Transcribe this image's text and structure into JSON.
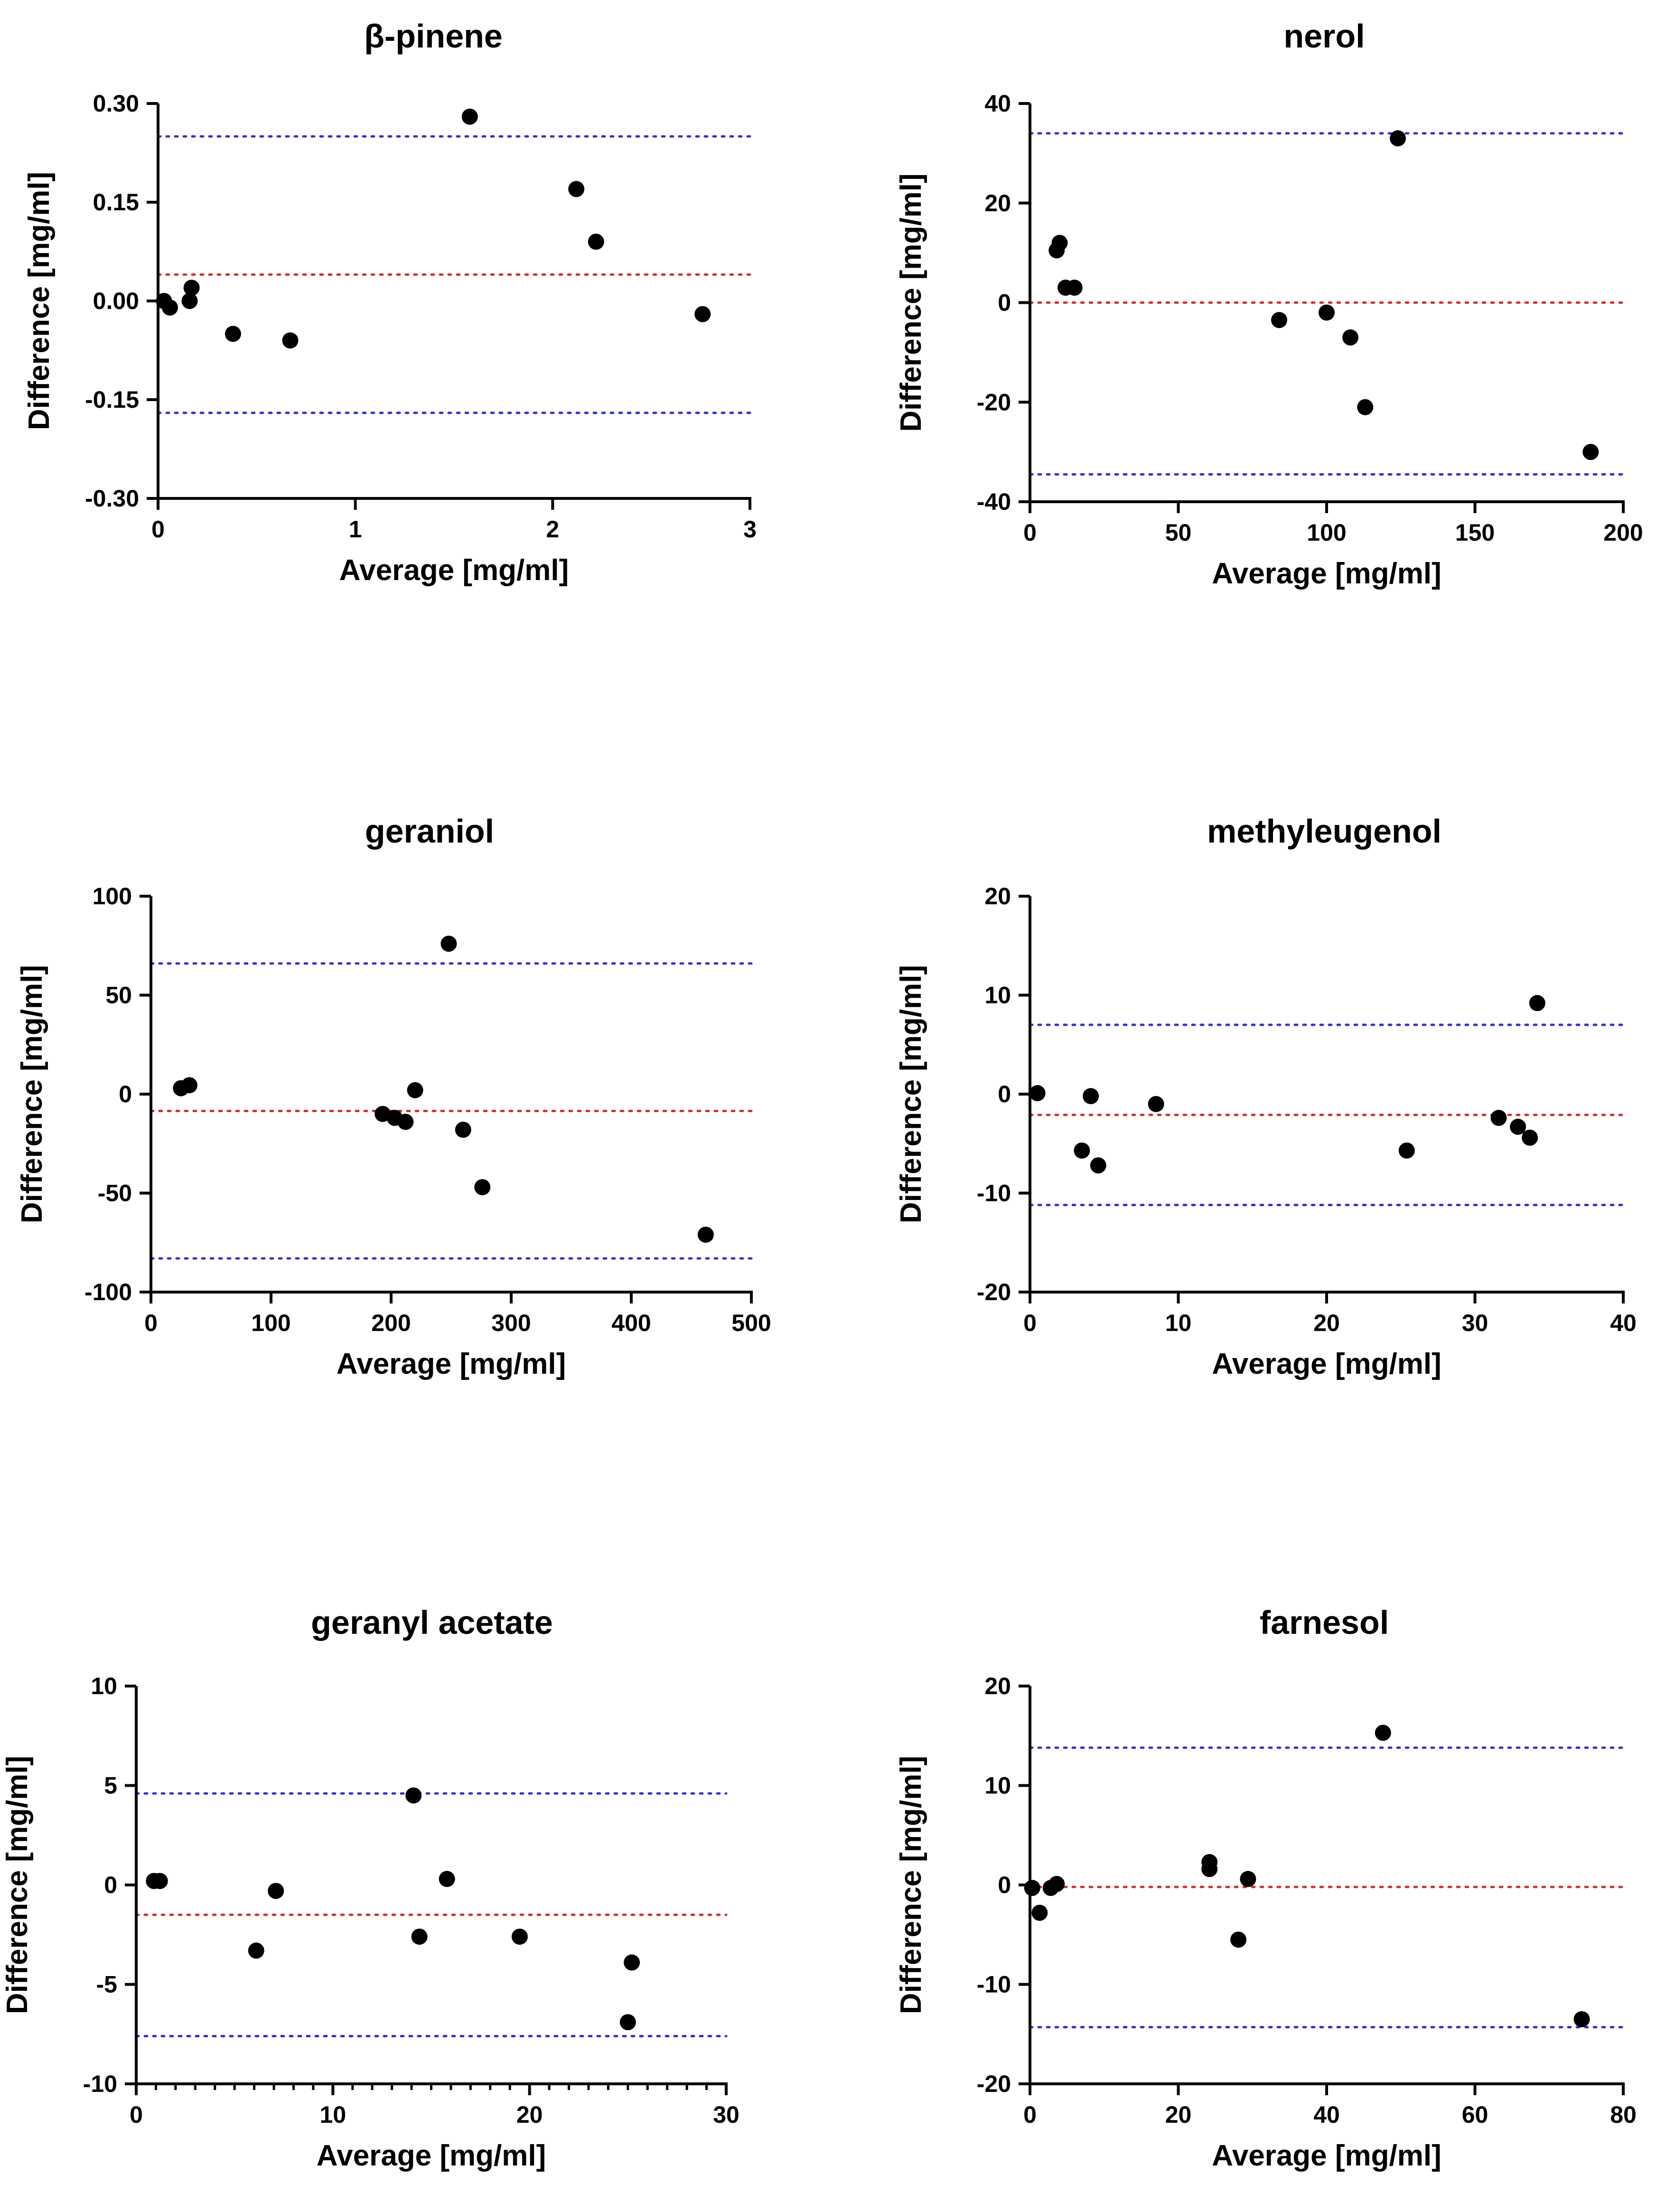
{
  "chart_data": [
    {
      "type": "scatter",
      "title": "β-pinene",
      "xlabel": "Average [mg/ml]",
      "ylabel": "Difference [mg/ml]",
      "xlim": [
        0,
        3
      ],
      "ylim": [
        -0.3,
        0.3
      ],
      "xticks": [
        0,
        1,
        2,
        3
      ],
      "xtick_labels": [
        "0",
        "1",
        "2",
        "3"
      ],
      "yticks": [
        -0.3,
        -0.15,
        0.0,
        0.15,
        0.3
      ],
      "ytick_labels": [
        "-0.30",
        "-0.15",
        "0.00",
        "0.15",
        "0.30"
      ],
      "x_minor_ticks": false,
      "points": [
        [
          0.03,
          0.0
        ],
        [
          0.06,
          -0.01
        ],
        [
          0.16,
          0.0
        ],
        [
          0.17,
          0.02
        ],
        [
          0.38,
          -0.05
        ],
        [
          0.67,
          -0.06
        ],
        [
          1.58,
          0.28
        ],
        [
          2.12,
          0.17
        ],
        [
          2.22,
          0.09
        ],
        [
          2.76,
          -0.02
        ]
      ],
      "reference_lines": [
        {
          "name": "upper limit of agreement",
          "y": 0.25,
          "color": "#3333cc"
        },
        {
          "name": "mean difference",
          "y": 0.04,
          "color": "#cc3333"
        },
        {
          "name": "lower limit of agreement",
          "y": -0.17,
          "color": "#3333cc"
        }
      ]
    },
    {
      "type": "scatter",
      "title": "nerol",
      "xlabel": "Average [mg/ml]",
      "ylabel": "Difference [mg/ml]",
      "xlim": [
        0,
        200
      ],
      "ylim": [
        -40,
        40
      ],
      "xticks": [
        0,
        50,
        100,
        150,
        200
      ],
      "xtick_labels": [
        "0",
        "50",
        "100",
        "150",
        "200"
      ],
      "yticks": [
        -40,
        -20,
        0,
        20,
        40
      ],
      "ytick_labels": [
        "-40",
        "-20",
        "0",
        "20",
        "40"
      ],
      "x_minor_ticks": false,
      "points": [
        [
          9,
          10.5
        ],
        [
          10,
          12
        ],
        [
          12,
          3
        ],
        [
          15,
          3
        ],
        [
          84,
          -3.5
        ],
        [
          100,
          -2
        ],
        [
          108,
          -7
        ],
        [
          113,
          -21
        ],
        [
          124,
          33
        ],
        [
          189,
          -30
        ]
      ],
      "reference_lines": [
        {
          "name": "upper limit of agreement",
          "y": 34,
          "color": "#3333cc"
        },
        {
          "name": "mean difference",
          "y": 0,
          "color": "#cc3333"
        },
        {
          "name": "lower limit of agreement",
          "y": -34.5,
          "color": "#3333cc"
        }
      ]
    },
    {
      "type": "scatter",
      "title": "geraniol",
      "xlabel": "Average [mg/ml]",
      "ylabel": "Difference [mg/ml]",
      "xlim": [
        0,
        500
      ],
      "ylim": [
        -100,
        100
      ],
      "xticks": [
        0,
        100,
        200,
        300,
        400,
        500
      ],
      "xtick_labels": [
        "0",
        "100",
        "200",
        "300",
        "400",
        "500"
      ],
      "yticks": [
        -100,
        -50,
        0,
        50,
        100
      ],
      "ytick_labels": [
        "-100",
        "-50",
        "0",
        "50",
        "100"
      ],
      "x_minor_ticks": false,
      "points": [
        [
          25,
          3
        ],
        [
          32,
          4.5
        ],
        [
          193,
          -10
        ],
        [
          203,
          -12
        ],
        [
          212,
          -14
        ],
        [
          220,
          2
        ],
        [
          260,
          -18
        ],
        [
          276,
          -47
        ],
        [
          248,
          76
        ],
        [
          462,
          -71
        ]
      ],
      "reference_lines": [
        {
          "name": "upper limit of agreement",
          "y": 66,
          "color": "#3333cc"
        },
        {
          "name": "mean difference",
          "y": -8.5,
          "color": "#cc3333"
        },
        {
          "name": "lower limit of agreement",
          "y": -83,
          "color": "#3333cc"
        }
      ]
    },
    {
      "type": "scatter",
      "title": "methyleugenol",
      "xlabel": "Average [mg/ml]",
      "ylabel": "Difference [mg/ml]",
      "xlim": [
        0,
        40
      ],
      "ylim": [
        -20,
        20
      ],
      "xticks": [
        0,
        10,
        20,
        30,
        40
      ],
      "xtick_labels": [
        "0",
        "10",
        "20",
        "30",
        "40"
      ],
      "yticks": [
        -20,
        -10,
        0,
        10,
        20
      ],
      "ytick_labels": [
        "-20",
        "-10",
        "0",
        "10",
        "20"
      ],
      "x_minor_ticks": false,
      "points": [
        [
          0.5,
          0.1
        ],
        [
          3.5,
          -5.7
        ],
        [
          4.1,
          -0.2
        ],
        [
          4.6,
          -7.2
        ],
        [
          8.5,
          -1
        ],
        [
          25.4,
          -5.7
        ],
        [
          31.6,
          -2.4
        ],
        [
          32.9,
          -3.3
        ],
        [
          33.7,
          -4.4
        ],
        [
          34.2,
          9.2
        ]
      ],
      "reference_lines": [
        {
          "name": "upper limit of agreement",
          "y": 7,
          "color": "#3333cc"
        },
        {
          "name": "mean difference",
          "y": -2.1,
          "color": "#cc3333"
        },
        {
          "name": "lower limit of agreement",
          "y": -11.2,
          "color": "#3333cc"
        }
      ]
    },
    {
      "type": "scatter",
      "title": "geranyl acetate",
      "xlabel": "Average [mg/ml]",
      "ylabel": "Difference [mg/ml]",
      "xlim": [
        0,
        30
      ],
      "ylim": [
        -10,
        10
      ],
      "xticks": [
        0,
        10,
        20,
        30
      ],
      "xtick_labels": [
        "0",
        "10",
        "20",
        "30"
      ],
      "yticks": [
        -10,
        -5,
        0,
        5,
        10
      ],
      "ytick_labels": [
        "-10",
        "-5",
        "0",
        "5",
        "10"
      ],
      "x_minor_ticks": true,
      "points": [
        [
          0.9,
          0.2
        ],
        [
          1.2,
          0.2
        ],
        [
          6.1,
          -3.3
        ],
        [
          7.1,
          -0.3
        ],
        [
          14.1,
          4.5
        ],
        [
          14.4,
          -2.6
        ],
        [
          15.8,
          0.3
        ],
        [
          19.5,
          -2.6
        ],
        [
          25.2,
          -3.9
        ],
        [
          25.0,
          -6.9
        ]
      ],
      "reference_lines": [
        {
          "name": "upper limit of agreement",
          "y": 4.6,
          "color": "#3333cc"
        },
        {
          "name": "mean difference",
          "y": -1.5,
          "color": "#cc3333"
        },
        {
          "name": "lower limit of agreement",
          "y": -7.6,
          "color": "#3333cc"
        }
      ]
    },
    {
      "type": "scatter",
      "title": "farnesol",
      "xlabel": "Average [mg/ml]",
      "ylabel": "Difference [mg/ml]",
      "xlim": [
        0,
        80
      ],
      "ylim": [
        -20,
        20
      ],
      "xticks": [
        0,
        20,
        40,
        60,
        80
      ],
      "xtick_labels": [
        "0",
        "20",
        "40",
        "60",
        "80"
      ],
      "yticks": [
        -20,
        -10,
        0,
        10,
        20
      ],
      "ytick_labels": [
        "-20",
        "-10",
        "0",
        "10",
        "20"
      ],
      "x_minor_ticks": false,
      "points": [
        [
          0.3,
          -0.3
        ],
        [
          1.3,
          -2.8
        ],
        [
          2.8,
          -0.3
        ],
        [
          3.6,
          0.1
        ],
        [
          24.2,
          2.3
        ],
        [
          24.2,
          1.6
        ],
        [
          29.4,
          0.6
        ],
        [
          28.1,
          -5.5
        ],
        [
          47.6,
          15.3
        ],
        [
          74.4,
          -13.5
        ]
      ],
      "reference_lines": [
        {
          "name": "upper limit of agreement",
          "y": 13.8,
          "color": "#3333cc"
        },
        {
          "name": "mean difference",
          "y": -0.2,
          "color": "#cc3333"
        },
        {
          "name": "lower limit of agreement",
          "y": -14.3,
          "color": "#3333cc"
        }
      ]
    }
  ]
}
